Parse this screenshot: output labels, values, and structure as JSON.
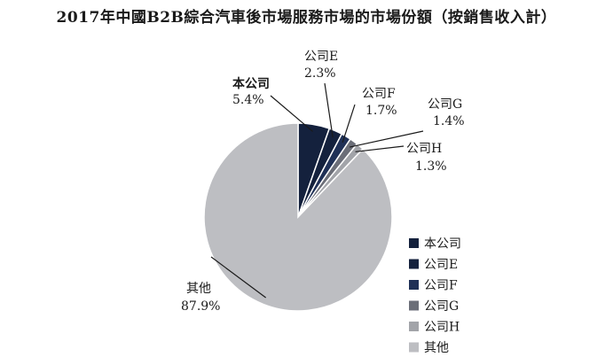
{
  "title": "2017年中國B2B綜合汽車後市場服務市場的市場份額（按銷售收入計）",
  "chart_data": {
    "type": "pie",
    "title": "2017年中國B2B綜合汽車後市場服務市場的市場份額（按銷售收入計）",
    "slices": [
      {
        "name": "本公司",
        "value": 5.4,
        "label": "5.4%",
        "color": "#14213d"
      },
      {
        "name": "公司E",
        "value": 2.3,
        "label": "2.3%",
        "color": "#14213d"
      },
      {
        "name": "公司F",
        "value": 1.7,
        "label": "1.7%",
        "color": "#1f3056"
      },
      {
        "name": "公司G",
        "value": 1.4,
        "label": "1.4%",
        "color": "#6b6e78"
      },
      {
        "name": "公司H",
        "value": 1.3,
        "label": "1.3%",
        "color": "#a2a4a9"
      },
      {
        "name": "其他",
        "value": 87.9,
        "label": "87.9%",
        "color": "#bdbec2"
      }
    ],
    "legend_position": "bottom-right",
    "start": "12 o'clock, clockwise"
  }
}
